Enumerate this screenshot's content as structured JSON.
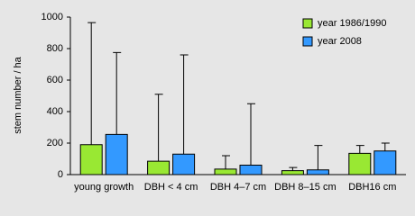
{
  "chart_data": {
    "type": "bar",
    "y_label": "stem number / ha",
    "categories": [
      "young growth",
      "DBH < 4 cm",
      "DBH 4–7 cm",
      "DBH 8–15 cm",
      "DBH16 cm"
    ],
    "series": [
      {
        "name": "year 1986/1990",
        "color": "#99e833",
        "values": [
          190,
          85,
          35,
          25,
          135
        ],
        "errors": [
          775,
          425,
          85,
          20,
          50
        ]
      },
      {
        "name": "year 2008",
        "color": "#3399ff",
        "values": [
          255,
          130,
          60,
          30,
          150
        ],
        "errors": [
          520,
          630,
          390,
          155,
          50
        ]
      }
    ],
    "ylim": [
      0,
      1000
    ],
    "yticks": [
      0,
      200,
      400,
      600,
      800,
      1000
    ],
    "grid": false,
    "legend": "top-right"
  }
}
